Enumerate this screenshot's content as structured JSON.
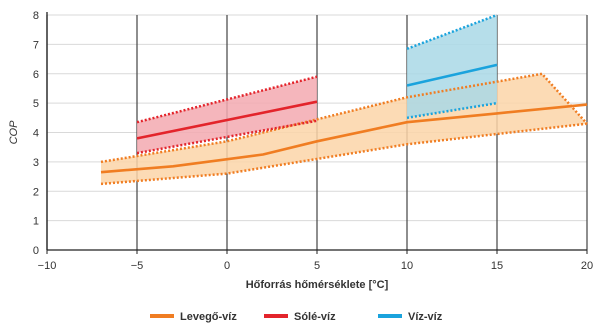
{
  "chart_data": {
    "type": "line",
    "xlabel": "Hőforrás hőmérséklete [°C]",
    "ylabel": "COP",
    "xlim": [
      -10,
      20
    ],
    "ylim": [
      0,
      8
    ],
    "xticks": [
      -10,
      -5,
      0,
      5,
      10,
      15,
      20
    ],
    "yticks": [
      0,
      1,
      2,
      3,
      4,
      5,
      6,
      7,
      8
    ],
    "xtick_labels": [
      "−10",
      "−5",
      "0",
      "5",
      "10",
      "15",
      "20"
    ],
    "ytick_labels": [
      "0",
      "1",
      "2",
      "3",
      "4",
      "5",
      "6",
      "7",
      "8"
    ],
    "grid": "horizontal",
    "legend_position": "bottom-center",
    "series": [
      {
        "name": "Levegő-víz",
        "color": "#f07d22",
        "band_color": "#fbd5a8",
        "x": [
          -7,
          -3,
          2,
          5,
          10,
          15,
          20
        ],
        "values": [
          2.65,
          2.85,
          3.25,
          3.7,
          4.35,
          4.65,
          4.95
        ],
        "upper": {
          "x": [
            -7,
            0,
            10,
            17.5,
            20
          ],
          "values": [
            3.0,
            3.7,
            5.2,
            6.0,
            4.3
          ]
        },
        "lower": {
          "x": [
            -7,
            0,
            10,
            20
          ],
          "values": [
            2.25,
            2.6,
            3.6,
            4.3
          ]
        }
      },
      {
        "name": "Sólé-víz",
        "color": "#e3242b",
        "band_color": "#f3a9b0",
        "x": [
          -5,
          5
        ],
        "values": [
          3.8,
          5.05
        ],
        "upper": {
          "x": [
            -5,
            5
          ],
          "values": [
            4.35,
            5.9
          ]
        },
        "lower": {
          "x": [
            -5,
            5
          ],
          "values": [
            3.3,
            4.4
          ]
        }
      },
      {
        "name": "Víz-víz",
        "color": "#1aa3dd",
        "band_color": "#a9d8e6",
        "x": [
          10,
          15
        ],
        "values": [
          5.6,
          6.3
        ],
        "upper": {
          "x": [
            10,
            15
          ],
          "values": [
            6.85,
            8.0
          ]
        },
        "lower": {
          "x": [
            10,
            15
          ],
          "values": [
            4.5,
            5.0
          ]
        }
      }
    ]
  }
}
